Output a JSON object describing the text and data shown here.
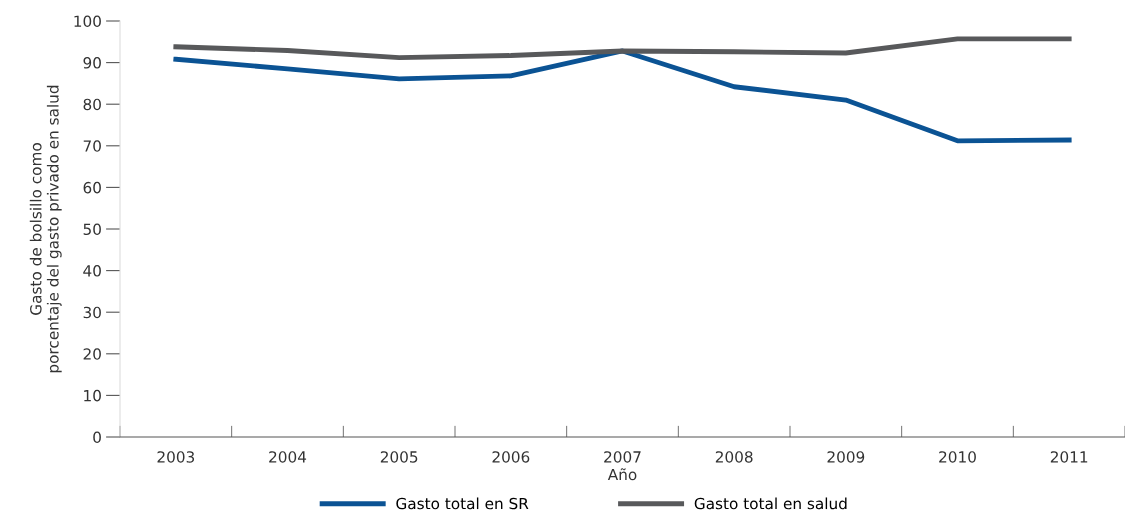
{
  "chart_data": {
    "type": "line",
    "xlabel": "Año",
    "ylabel": "Gasto de bolsillo como\nporcentaje del gasto privado en salud",
    "categories": [
      "2003",
      "2004",
      "2005",
      "2006",
      "2007",
      "2008",
      "2009",
      "2010",
      "2011"
    ],
    "series": [
      {
        "name": "Gasto total en SR",
        "color": "#0b5394",
        "values": [
          90.8,
          88.5,
          86.1,
          86.8,
          92.8,
          84.2,
          81.0,
          71.2,
          71.4
        ]
      },
      {
        "name": "Gasto total en salud",
        "color": "#58595b",
        "values": [
          93.8,
          92.9,
          91.2,
          91.7,
          92.8,
          92.6,
          92.3,
          95.7,
          95.7
        ]
      }
    ],
    "ylim": [
      0,
      100
    ],
    "yticks": [
      0,
      10,
      20,
      30,
      40,
      50,
      60,
      70,
      80,
      90,
      100
    ],
    "grid": false,
    "legend": "bottom",
    "marker": "none",
    "line_style": "solid"
  }
}
